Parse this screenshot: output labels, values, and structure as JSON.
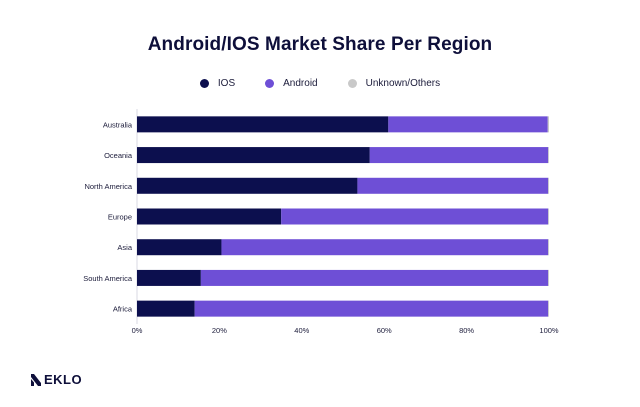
{
  "title": "Android/IOS Market Share Per Region",
  "brand": {
    "name": "EKLO",
    "logo_icon": "neklo-n-logo"
  },
  "legend": [
    {
      "label": "IOS",
      "color": "#0c0f4e"
    },
    {
      "label": "Android",
      "color": "#6e4fd6"
    },
    {
      "label": "Unknown/Others",
      "color": "#c9c9c9"
    }
  ],
  "chart_data": {
    "type": "bar",
    "orientation": "horizontal",
    "stacked": true,
    "categories": [
      "Australia",
      "Oceania",
      "North America",
      "Europe",
      "Asia",
      "South America",
      "Africa"
    ],
    "series": [
      {
        "name": "IOS",
        "color": "#0c0f4e",
        "values": [
          61,
          56.5,
          53.5,
          35,
          20.5,
          15.5,
          14
        ]
      },
      {
        "name": "Android",
        "color": "#6e4fd6",
        "values": [
          38.7,
          43.3,
          46.3,
          64.8,
          79.3,
          84.3,
          85.8
        ]
      },
      {
        "name": "Unknown/Others",
        "color": "#c9c9c9",
        "values": [
          0.3,
          0.2,
          0.2,
          0.2,
          0.2,
          0.2,
          0.2
        ]
      }
    ],
    "xlim": [
      0,
      100
    ],
    "xticks": [
      "0%",
      "20%",
      "40%",
      "60%",
      "80%",
      "100%"
    ],
    "title": "Android/IOS Market Share Per Region",
    "legend_position": "top-center",
    "grid": false
  }
}
